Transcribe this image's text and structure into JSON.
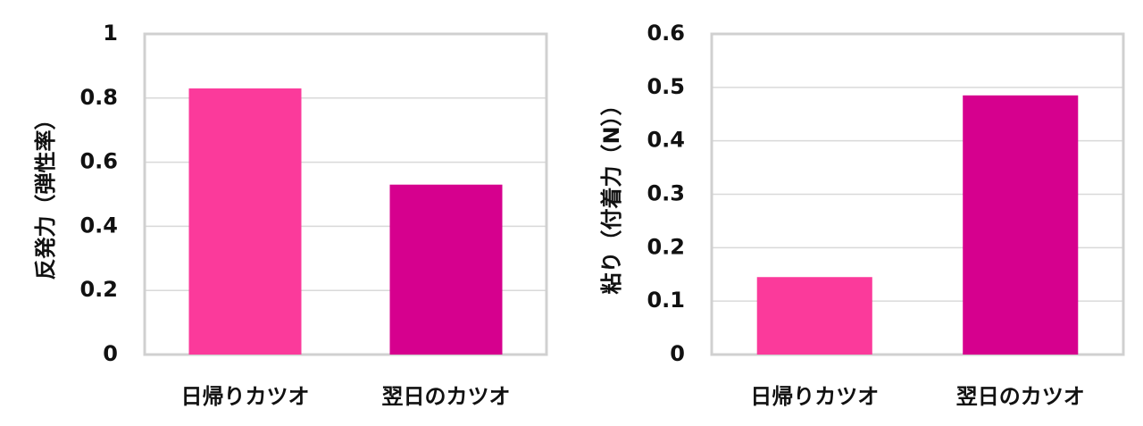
{
  "chart_data": [
    {
      "type": "bar",
      "y_label": "反発力（弾性率）",
      "categories": [
        "日帰りカツオ",
        "翌日のカツオ"
      ],
      "series": [
        {
          "values": [
            0.83,
            0.53
          ],
          "colors": [
            "#fb3a9b",
            "#d6008e"
          ]
        }
      ],
      "ylim": [
        0,
        1
      ],
      "yticks": [
        0,
        0.2,
        0.4,
        0.6,
        0.8,
        1
      ],
      "grid": true
    },
    {
      "type": "bar",
      "y_label": "粘り（付着力（N））",
      "categories": [
        "日帰りカツオ",
        "翌日のカツオ"
      ],
      "series": [
        {
          "values": [
            0.145,
            0.485
          ],
          "colors": [
            "#fb3a9b",
            "#d6008e"
          ]
        }
      ],
      "ylim": [
        0,
        0.6
      ],
      "yticks": [
        0,
        0.1,
        0.2,
        0.3,
        0.4,
        0.5,
        0.6
      ],
      "grid": true
    }
  ]
}
